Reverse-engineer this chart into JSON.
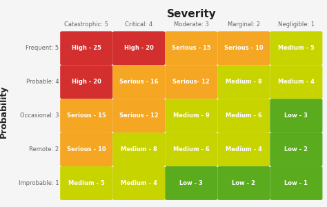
{
  "title": "Severity",
  "ylabel": "Probability",
  "col_labels": [
    "Catastrophic: 5",
    "Critical: 4",
    "Moderate: 3",
    "Marginal: 2",
    "Negligible: 1"
  ],
  "row_labels": [
    "Frequent: 5",
    "Probable: 4",
    "Occasional: 3",
    "Remote: 2",
    "Improbable: 1"
  ],
  "cell_texts": [
    [
      "High - 25",
      "High - 20",
      "Serious - 15",
      "Serious - 10",
      "Medium - 5"
    ],
    [
      "High - 20",
      "Serious - 16",
      "Serious- 12",
      "Medium - 8",
      "Medium - 4"
    ],
    [
      "Serious - 15",
      "Serious - 12",
      "Medium - 9",
      "Medium - 6",
      "Low - 3"
    ],
    [
      "Serious - 10",
      "Medium - 8",
      "Medium - 6",
      "Medium - 4",
      "Low - 2"
    ],
    [
      "Medium - 5",
      "Medium - 4",
      "Low - 3",
      "Low - 2",
      "Low - 1"
    ]
  ],
  "cell_colors": [
    [
      "#d32f2f",
      "#d32f2f",
      "#f5a623",
      "#f5a623",
      "#c8d400"
    ],
    [
      "#d32f2f",
      "#f5a623",
      "#f5a623",
      "#c8d400",
      "#c8d400"
    ],
    [
      "#f5a623",
      "#f5a623",
      "#c8d400",
      "#c8d400",
      "#5aab1e"
    ],
    [
      "#f5a623",
      "#c8d400",
      "#c8d400",
      "#c8d400",
      "#5aab1e"
    ],
    [
      "#c8d400",
      "#c8d400",
      "#5aab1e",
      "#5aab1e",
      "#5aab1e"
    ]
  ],
  "bg_color": "#f5f5f5",
  "cell_bg_color": "#ffffff",
  "text_color": "#ffffff",
  "col_label_color": "#666666",
  "row_label_color": "#666666",
  "title_color": "#222222",
  "title_fontsize": 11,
  "label_fontsize": 6.0,
  "cell_fontsize": 6.0,
  "ylabel_fontsize": 9
}
